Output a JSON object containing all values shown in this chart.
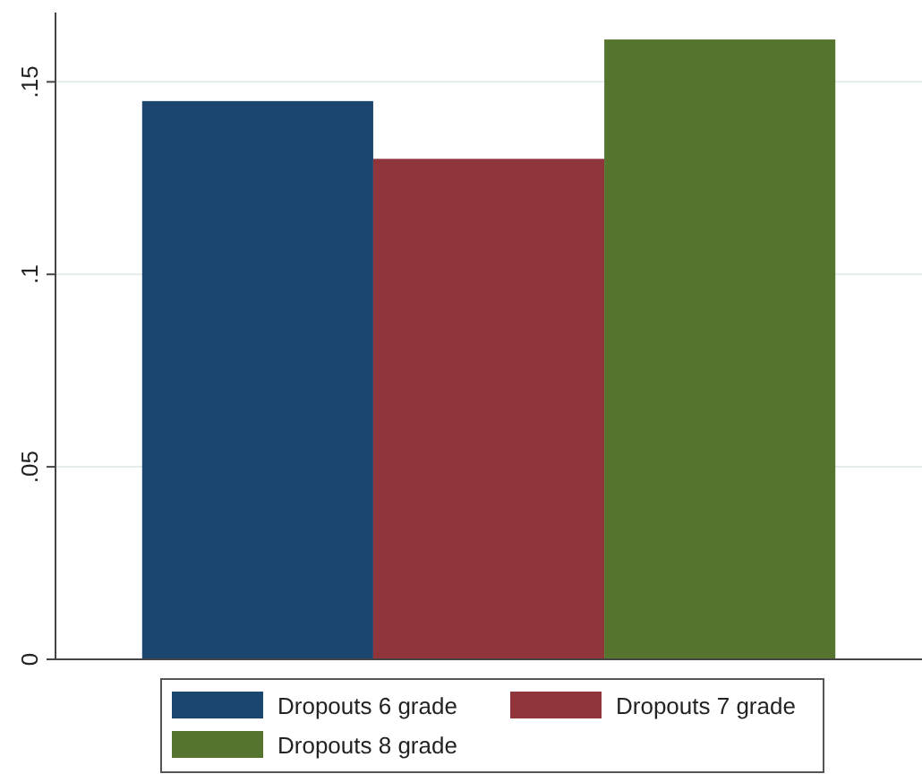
{
  "chart_data": {
    "type": "bar",
    "categories": [
      null
    ],
    "series": [
      {
        "name": "Dropouts 6 grade",
        "color": "#1b466f",
        "values": [
          0.145
        ]
      },
      {
        "name": "Dropouts 7 grade",
        "color": "#90353b",
        "values": [
          0.13
        ]
      },
      {
        "name": "Dropouts 8 grade",
        "color": "#55752f",
        "values": [
          0.161
        ]
      }
    ],
    "ylim": [
      0,
      0.168
    ],
    "yticks": [
      {
        "value": 0,
        "label": "0"
      },
      {
        "value": 0.05,
        "label": ".05"
      },
      {
        "value": 0.1,
        "label": ".1"
      },
      {
        "value": 0.15,
        "label": ".15"
      }
    ],
    "grid": "y",
    "legend": "bottom"
  }
}
